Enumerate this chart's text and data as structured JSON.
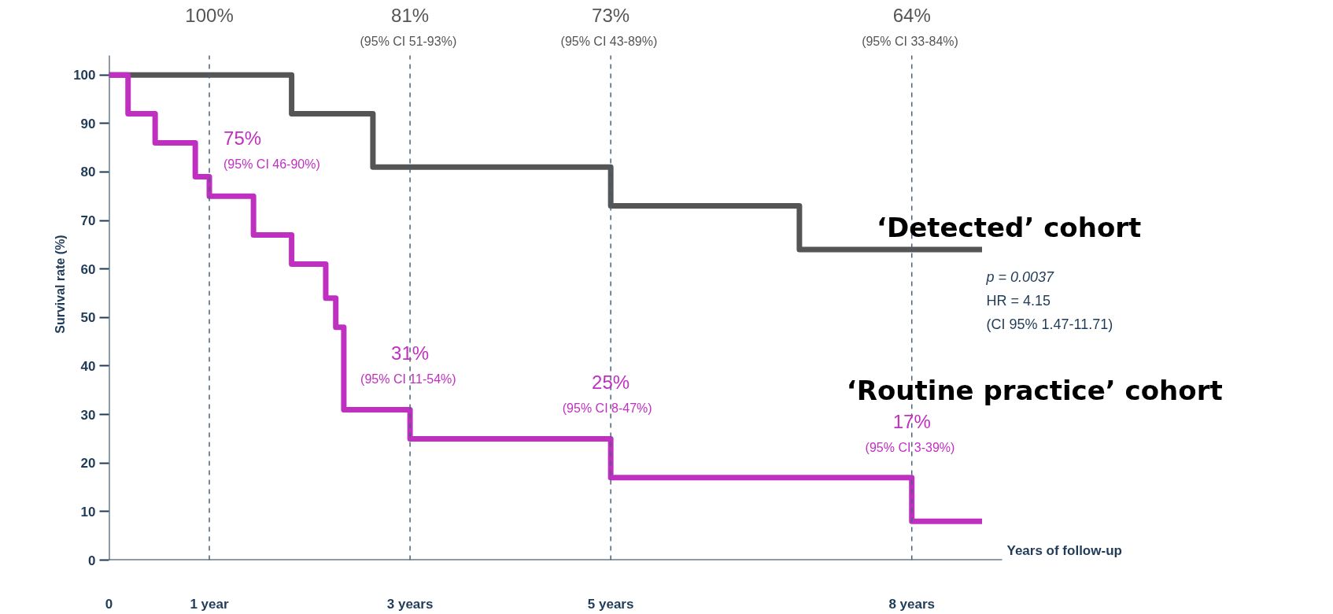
{
  "chart_data": {
    "type": "step",
    "xlabel": "Years of follow-up",
    "ylabel": "Survival rate (%)",
    "xlim": [
      0,
      8.9
    ],
    "ylim": [
      0,
      104
    ],
    "xticks": [
      0,
      {
        "value": 1,
        "label": "1 year"
      },
      {
        "value": 3,
        "label": "3 years"
      },
      {
        "value": 5,
        "label": "5 years"
      },
      {
        "value": 8,
        "label": "8 years"
      }
    ],
    "yticks": [
      0,
      10,
      20,
      30,
      40,
      50,
      60,
      70,
      80,
      90,
      100
    ],
    "grid": false,
    "legend": false,
    "marker": "none",
    "line_style": "solid",
    "series": [
      {
        "name": "‘Detected’ cohort",
        "color": "#555555",
        "x": [
          0,
          1.82,
          2.63,
          5.0,
          6.88,
          8.7
        ],
        "values": [
          100,
          92,
          81,
          73,
          64,
          64
        ]
      },
      {
        "name": "‘Routine practice’ cohort",
        "color": "#c030c0",
        "x": [
          0,
          0.19,
          0.46,
          0.86,
          1.0,
          1.44,
          1.82,
          2.16,
          2.26,
          2.34,
          3.0,
          5.0,
          8.0,
          8.7
        ],
        "values": [
          100,
          92,
          86,
          79,
          75,
          67,
          61,
          54,
          48,
          31,
          25,
          17,
          8,
          8
        ]
      }
    ],
    "ref_lines": [
      {
        "axis": "x",
        "value": 1,
        "label": "100%",
        "color": "#4a6278",
        "line_style": "dashed"
      },
      {
        "axis": "x",
        "value": 3,
        "label": "81%\n(95% CI  51-93%)",
        "color": "#4a6278",
        "line_style": "dashed"
      },
      {
        "axis": "x",
        "value": 5,
        "label": "73%\n(95% CI  43-89%)",
        "color": "#4a6278",
        "line_style": "dashed"
      },
      {
        "axis": "x",
        "value": 8,
        "label": "64%\n(95% CI  33-84%)",
        "color": "#4a6278",
        "line_style": "dashed"
      }
    ],
    "annotations": [
      {
        "text": "75%\n(95% CI  46-90%)",
        "x": 1,
        "y": 75
      },
      {
        "text": "31%\n(95% CI  11-54%)",
        "x": 3,
        "y": 31
      },
      {
        "text": "25%\n(95%  CI  8-47%)",
        "x": 5,
        "y": 25
      },
      {
        "text": "17%\n(95% CI  3-39%)",
        "x": 8,
        "y": 17
      },
      "p = 0.0037\nHR = 4.15\n(CI 95%  1.47-11.71)"
    ]
  }
}
